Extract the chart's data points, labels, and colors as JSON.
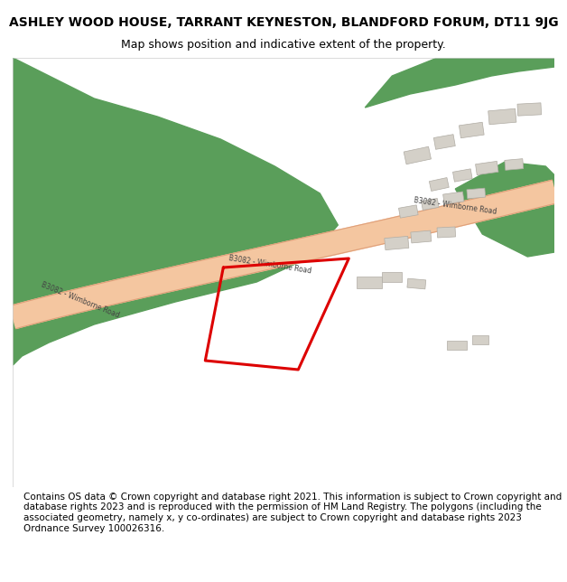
{
  "title_line1": "ASHLEY WOOD HOUSE, TARRANT KEYNESTON, BLANDFORD FORUM, DT11 9JG",
  "title_line2": "Map shows position and indicative extent of the property.",
  "footer_text": "Contains OS data © Crown copyright and database right 2021. This information is subject to Crown copyright and database rights 2023 and is reproduced with the permission of HM Land Registry. The polygons (including the associated geometry, namely x, y co-ordinates) are subject to Crown copyright and database rights 2023 Ordnance Survey 100026316.",
  "bg_color": "#f5f4f0",
  "map_bg": "#f5f4f0",
  "road_color": "#f4c6a0",
  "road_edge_color": "#e0a07a",
  "green_color": "#5a9e5a",
  "building_color": "#d4d0c8",
  "building_edge": "#b0aca4",
  "red_polygon_color": "#dd0000",
  "road_label": "B3082 - Wimborne Road",
  "title_fontsize": 10,
  "footer_fontsize": 7.5
}
